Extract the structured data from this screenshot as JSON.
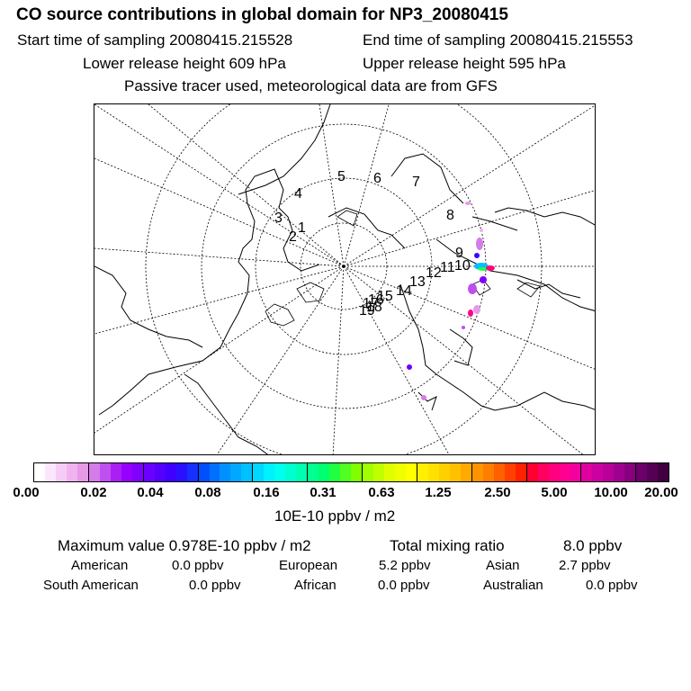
{
  "header": {
    "title": "CO  source contributions in global domain for NP3_20080415",
    "start_time": "Start time of sampling 20080415.215528",
    "end_time": "End time of sampling 20080415.215553",
    "lower_height": "Lower release height  609 hPa",
    "upper_height": "Upper release height  595 hPa",
    "tracer_note": "Passive tracer used, meteorological data are from GFS"
  },
  "map": {
    "projection": "north polar stereographic",
    "trajectory_labels": [
      "1",
      "2",
      "3",
      "4",
      "5",
      "6",
      "7",
      "8",
      "9",
      "10",
      "11",
      "12",
      "13",
      "14",
      "15",
      "16",
      "17",
      "18",
      "19"
    ],
    "colors": {
      "coast": "#000000",
      "grid": "#000000"
    }
  },
  "legend": {
    "ticks": [
      "0.00",
      "0.02",
      "0.04",
      "0.08",
      "0.16",
      "0.31",
      "0.63",
      "1.25",
      "2.50",
      "5.00",
      "10.00",
      "20.00"
    ],
    "colors": [
      "#ffffff",
      "#fbe6fb",
      "#f6ccf6",
      "#f0b3f0",
      "#e69ae6",
      "#d47ce9",
      "#bf4ff0",
      "#aa1ff5",
      "#9600ff",
      "#7f00ff",
      "#6a00ff",
      "#5500ff",
      "#3f00ff",
      "#2a10ff",
      "#1530ff",
      "#0050ff",
      "#0070ff",
      "#0090ff",
      "#00a8ff",
      "#00c0ff",
      "#00d8ff",
      "#00f0ff",
      "#00ffee",
      "#00ffd0",
      "#00ffb0",
      "#00ff90",
      "#00ff70",
      "#20ff40",
      "#50ff20",
      "#80ff00",
      "#a0ff00",
      "#c0ff00",
      "#dfff00",
      "#f0ff00",
      "#ffff00",
      "#ffef00",
      "#ffe000",
      "#ffd000",
      "#ffc000",
      "#ffaa00",
      "#ff9400",
      "#ff7e00",
      "#ff6000",
      "#ff4000",
      "#ff2000",
      "#ff0030",
      "#ff0060",
      "#ff0080",
      "#ff0090",
      "#f400a0",
      "#e000a0",
      "#cc00a0",
      "#b80098",
      "#a00090",
      "#880080",
      "#6a0068",
      "#550055",
      "#400040"
    ],
    "units": "10E-10 ppbv / m2"
  },
  "summary": {
    "max_label": "Maximum value  0.978E-10 ppbv / m2",
    "total_label": "Total mixing ratio",
    "total_value": "8.0 ppbv",
    "regions": [
      {
        "name": "American",
        "value": "0.0 ppbv"
      },
      {
        "name": "European",
        "value": "5.2 ppbv"
      },
      {
        "name": "Asian",
        "value": "2.7 ppbv"
      },
      {
        "name": "South American",
        "value": "0.0 ppbv"
      },
      {
        "name": "African",
        "value": "0.0 ppbv"
      },
      {
        "name": "Australian",
        "value": "0.0 ppbv"
      }
    ]
  }
}
